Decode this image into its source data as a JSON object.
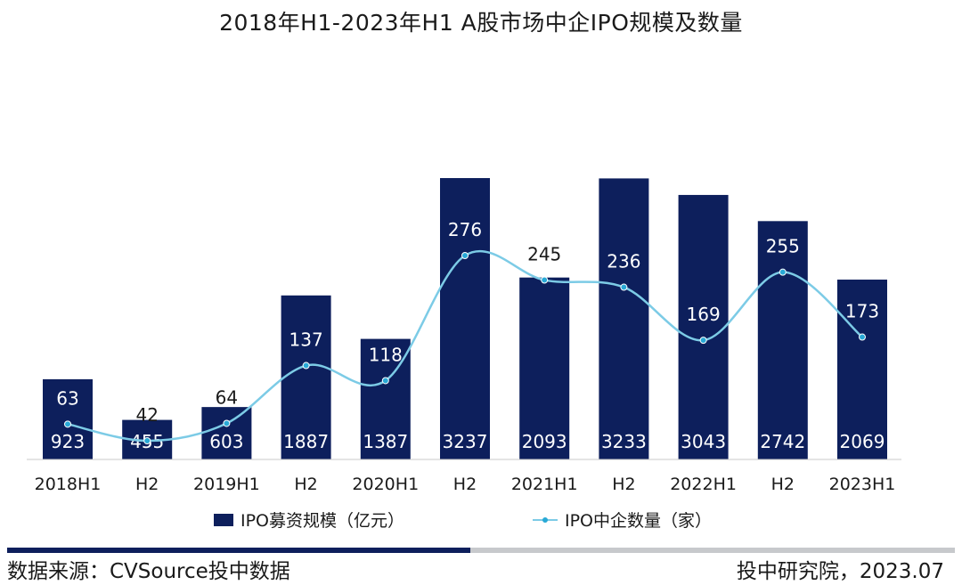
{
  "chart_data": {
    "type": "bar",
    "title": "2018年H1-2023年H1  A股市场中企IPO规模及数量",
    "categories": [
      "2018H1",
      "H2",
      "2019H1",
      "H2",
      "2020H1",
      "H2",
      "2021H1",
      "H2",
      "2022H1",
      "H2",
      "2023H1"
    ],
    "series": [
      {
        "name": "IPO募资规模（亿元）",
        "type": "bar",
        "values": [
          923,
          455,
          603,
          1887,
          1387,
          3237,
          2093,
          3233,
          3043,
          2742,
          2069
        ]
      },
      {
        "name": "IPO中企数量（家）",
        "type": "line",
        "values": [
          63,
          42,
          64,
          137,
          118,
          276,
          245,
          236,
          169,
          255,
          173
        ]
      }
    ],
    "colors": {
      "bar": "#0d1f5c",
      "line": "#7ccbe6",
      "marker": "#29a9d6"
    },
    "grid": false,
    "legend": "bottom"
  },
  "footer": {
    "source": "数据来源：CVSource投中数据",
    "credit": "投中研究院，2023.07"
  }
}
